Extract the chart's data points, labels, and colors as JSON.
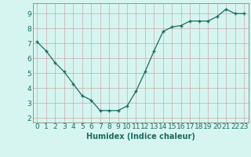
{
  "x": [
    0,
    1,
    2,
    3,
    4,
    5,
    6,
    7,
    8,
    9,
    10,
    11,
    12,
    13,
    14,
    15,
    16,
    17,
    18,
    19,
    20,
    21,
    22,
    23
  ],
  "y": [
    7.1,
    6.5,
    5.7,
    5.1,
    4.3,
    3.5,
    3.2,
    2.5,
    2.5,
    2.5,
    2.8,
    3.8,
    5.1,
    6.5,
    7.8,
    8.1,
    8.2,
    8.5,
    8.5,
    8.5,
    8.8,
    9.3,
    9.0,
    9.0
  ],
  "line_color": "#1a6b5e",
  "bg_color": "#d6f5f0",
  "grid_color": "#c8aaaa",
  "xlabel": "Humidex (Indice chaleur)",
  "xlabel_fontsize": 7,
  "tick_fontsize": 6.5,
  "ylim": [
    1.7,
    9.7
  ],
  "xlim": [
    -0.5,
    23.5
  ],
  "yticks": [
    2,
    3,
    4,
    5,
    6,
    7,
    8,
    9
  ],
  "xticks": [
    0,
    1,
    2,
    3,
    4,
    5,
    6,
    7,
    8,
    9,
    10,
    11,
    12,
    13,
    14,
    15,
    16,
    17,
    18,
    19,
    20,
    21,
    22,
    23
  ]
}
